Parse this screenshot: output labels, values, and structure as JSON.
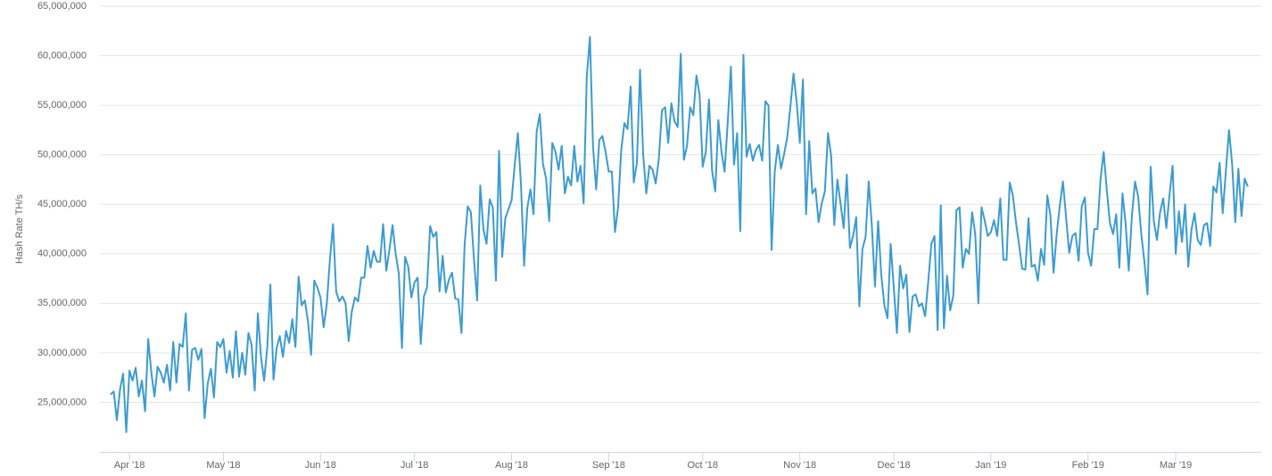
{
  "chart_data": {
    "type": "line",
    "y_label": "Hash Rate TH/s",
    "color": "#3c9bd2",
    "grid": true,
    "ylim": [
      20000000,
      65000000
    ],
    "yticks": [
      {
        "value": 25000000,
        "label": "25,000,000"
      },
      {
        "value": 30000000,
        "label": "30,000,000"
      },
      {
        "value": 35000000,
        "label": "35,000,000"
      },
      {
        "value": 40000000,
        "label": "40,000,000"
      },
      {
        "value": 45000000,
        "label": "45,000,000"
      },
      {
        "value": 50000000,
        "label": "50,000,000"
      },
      {
        "value": 55000000,
        "label": "55,000,000"
      },
      {
        "value": 60000000,
        "label": "60,000,000"
      },
      {
        "value": 65000000,
        "label": "65,000,000"
      }
    ],
    "categories": [
      null,
      null,
      null,
      null,
      null,
      null,
      "Apr '18",
      null,
      null,
      null,
      null,
      null,
      null,
      null,
      null,
      null,
      null,
      null,
      null,
      null,
      null,
      null,
      null,
      null,
      null,
      null,
      null,
      null,
      null,
      null,
      null,
      null,
      null,
      null,
      null,
      null,
      "May '18",
      null,
      null,
      null,
      null,
      null,
      null,
      null,
      null,
      null,
      null,
      null,
      null,
      null,
      null,
      null,
      null,
      null,
      null,
      null,
      null,
      null,
      null,
      null,
      null,
      null,
      null,
      null,
      null,
      null,
      null,
      "Jun '18",
      null,
      null,
      null,
      null,
      null,
      null,
      null,
      null,
      null,
      null,
      null,
      null,
      null,
      null,
      null,
      null,
      null,
      null,
      null,
      null,
      null,
      null,
      null,
      null,
      null,
      null,
      null,
      null,
      null,
      "Jul '18",
      null,
      null,
      null,
      null,
      null,
      null,
      null,
      null,
      null,
      null,
      null,
      null,
      null,
      null,
      null,
      null,
      null,
      null,
      null,
      null,
      null,
      null,
      null,
      null,
      null,
      null,
      null,
      null,
      null,
      null,
      "Aug '18",
      null,
      null,
      null,
      null,
      null,
      null,
      null,
      null,
      null,
      null,
      null,
      null,
      null,
      null,
      null,
      null,
      null,
      null,
      null,
      null,
      null,
      null,
      null,
      null,
      null,
      null,
      null,
      null,
      null,
      null,
      "Sep '18",
      null,
      null,
      null,
      null,
      null,
      null,
      null,
      null,
      null,
      null,
      null,
      null,
      null,
      null,
      null,
      null,
      null,
      null,
      null,
      null,
      null,
      null,
      null,
      null,
      null,
      null,
      null,
      null,
      null,
      "Oct '18",
      null,
      null,
      null,
      null,
      null,
      null,
      null,
      null,
      null,
      null,
      null,
      null,
      null,
      null,
      null,
      null,
      null,
      null,
      null,
      null,
      null,
      null,
      null,
      null,
      null,
      null,
      null,
      null,
      null,
      null,
      "Nov '18",
      null,
      null,
      null,
      null,
      null,
      null,
      null,
      null,
      null,
      null,
      null,
      null,
      null,
      null,
      null,
      null,
      null,
      null,
      null,
      null,
      null,
      null,
      null,
      null,
      null,
      null,
      null,
      null,
      null,
      "Dec '18",
      null,
      null,
      null,
      null,
      null,
      null,
      null,
      null,
      null,
      null,
      null,
      null,
      null,
      null,
      null,
      null,
      null,
      null,
      null,
      null,
      null,
      null,
      null,
      null,
      null,
      null,
      null,
      null,
      null,
      null,
      "Jan '19",
      null,
      null,
      null,
      null,
      null,
      null,
      null,
      null,
      null,
      null,
      null,
      null,
      null,
      null,
      null,
      null,
      null,
      null,
      null,
      null,
      null,
      null,
      null,
      null,
      null,
      null,
      null,
      null,
      null,
      null,
      "Feb '19",
      null,
      null,
      null,
      null,
      null,
      null,
      null,
      null,
      null,
      null,
      null,
      null,
      null,
      null,
      null,
      null,
      null,
      null,
      null,
      null,
      null,
      null,
      null,
      null,
      null,
      null,
      null,
      "Mar '19",
      null,
      null,
      null,
      null,
      null,
      null,
      null,
      null,
      null,
      null,
      null,
      null,
      null,
      null,
      null,
      null,
      null,
      null,
      null,
      null,
      null,
      null,
      null
    ],
    "values": [
      25800000.0,
      26100000.0,
      23200000.0,
      26300000.0,
      27900000.0,
      22000000.0,
      28200000.0,
      27200000.0,
      28500000.0,
      25600000.0,
      27200000.0,
      24100000.0,
      31400000.0,
      28000000.0,
      25600000.0,
      28600000.0,
      28000000.0,
      27000000.0,
      28800000.0,
      26200000.0,
      31100000.0,
      27000000.0,
      30900000.0,
      30600000.0,
      34000000.0,
      26200000.0,
      30300000.0,
      30500000.0,
      29300000.0,
      30400000.0,
      23400000.0,
      26900000.0,
      28400000.0,
      25500000.0,
      31100000.0,
      30600000.0,
      31400000.0,
      28000000.0,
      30200000.0,
      27500000.0,
      32200000.0,
      27600000.0,
      30000000.0,
      27800000.0,
      32000000.0,
      30800000.0,
      26200000.0,
      34000000.0,
      29600000.0,
      27200000.0,
      30500000.0,
      36900000.0,
      27300000.0,
      30500000.0,
      31700000.0,
      29600000.0,
      32200000.0,
      31000000.0,
      33400000.0,
      30600000.0,
      37700000.0,
      34800000.0,
      35300000.0,
      33200000.0,
      29800000.0,
      37300000.0,
      36600000.0,
      35600000.0,
      32600000.0,
      34900000.0,
      39400000.0,
      43000000.0,
      36200000.0,
      35200000.0,
      35700000.0,
      35000000.0,
      31200000.0,
      34200000.0,
      35600000.0,
      35200000.0,
      37600000.0,
      37600000.0,
      40800000.0,
      38600000.0,
      40300000.0,
      39200000.0,
      39200000.0,
      43000000.0,
      38300000.0,
      40400000.0,
      42900000.0,
      40000000.0,
      38000000.0,
      30500000.0,
      39700000.0,
      38700000.0,
      35600000.0,
      37100000.0,
      37600000.0,
      30900000.0,
      35700000.0,
      36600000.0,
      42800000.0,
      41700000.0,
      42200000.0,
      36200000.0,
      39800000.0,
      36100000.0,
      37400000.0,
      38100000.0,
      35500000.0,
      35400000.0,
      32000000.0,
      40900000.0,
      44800000.0,
      44200000.0,
      39400000.0,
      35300000.0,
      46900000.0,
      42500000.0,
      41000000.0,
      45500000.0,
      44700000.0,
      37300000.0,
      50400000.0,
      39700000.0,
      43600000.0,
      44500000.0,
      45400000.0,
      49000000.0,
      52200000.0,
      47000000.0,
      38800000.0,
      44600000.0,
      46500000.0,
      44000000.0,
      52300000.0,
      54100000.0,
      49100000.0,
      47600000.0,
      43300000.0,
      51200000.0,
      50300000.0,
      48500000.0,
      50900000.0,
      46100000.0,
      47800000.0,
      46900000.0,
      50900000.0,
      47300000.0,
      48900000.0,
      45100000.0,
      57900000.0,
      61900000.0,
      50800000.0,
      46500000.0,
      51500000.0,
      51900000.0,
      50300000.0,
      48300000.0,
      48300000.0,
      42200000.0,
      44700000.0,
      50500000.0,
      53200000.0,
      52600000.0,
      56900000.0,
      47200000.0,
      49200000.0,
      58600000.0,
      50000000.0,
      46100000.0,
      48900000.0,
      48500000.0,
      47100000.0,
      49600000.0,
      54500000.0,
      54800000.0,
      51200000.0,
      55200000.0,
      53400000.0,
      52800000.0,
      60200000.0,
      49500000.0,
      50900000.0,
      54800000.0,
      54000000.0,
      58000000.0,
      56100000.0,
      48800000.0,
      50300000.0,
      55600000.0,
      48400000.0,
      46300000.0,
      53500000.0,
      50300000.0,
      48300000.0,
      53300000.0,
      58900000.0,
      49000000.0,
      52200000.0,
      42300000.0,
      60100000.0,
      49800000.0,
      51100000.0,
      49400000.0,
      50500000.0,
      51000000.0,
      49400000.0,
      55400000.0,
      55000000.0,
      40400000.0,
      48300000.0,
      51000000.0,
      48600000.0,
      50100000.0,
      51800000.0,
      54900000.0,
      58200000.0,
      55300000.0,
      51200000.0,
      57600000.0,
      44000000.0,
      51400000.0,
      46100000.0,
      46600000.0,
      43200000.0,
      45100000.0,
      46300000.0,
      52200000.0,
      49900000.0,
      42900000.0,
      47500000.0,
      45100000.0,
      42600000.0,
      48000000.0,
      40600000.0,
      41800000.0,
      43700000.0,
      34700000.0,
      40500000.0,
      41700000.0,
      47300000.0,
      42800000.0,
      36700000.0,
      43300000.0,
      37900000.0,
      34800000.0,
      33500000.0,
      41000000.0,
      36600000.0,
      32000000.0,
      38800000.0,
      36500000.0,
      37900000.0,
      32100000.0,
      35700000.0,
      35900000.0,
      34700000.0,
      35000000.0,
      33700000.0,
      37200000.0,
      41000000.0,
      41800000.0,
      32300000.0,
      44900000.0,
      32500000.0,
      37800000.0,
      34300000.0,
      35800000.0,
      44400000.0,
      44700000.0,
      38600000.0,
      40500000.0,
      40000000.0,
      44200000.0,
      42000000.0,
      35000000.0,
      44700000.0,
      43400000.0,
      41800000.0,
      42200000.0,
      43400000.0,
      41800000.0,
      45600000.0,
      39400000.0,
      39400000.0,
      47200000.0,
      45900000.0,
      43200000.0,
      40900000.0,
      38500000.0,
      38400000.0,
      43600000.0,
      38700000.0,
      38900000.0,
      37300000.0,
      40500000.0,
      38900000.0,
      45900000.0,
      43900000.0,
      38100000.0,
      42000000.0,
      44900000.0,
      47300000.0,
      43700000.0,
      40100000.0,
      41800000.0,
      42100000.0,
      39300000.0,
      44800000.0,
      45700000.0,
      40100000.0,
      38800000.0,
      42500000.0,
      42500000.0,
      47600000.0,
      50300000.0,
      46400000.0,
      43100000.0,
      42000000.0,
      44000000.0,
      38600000.0,
      46100000.0,
      43100000.0,
      38300000.0,
      43800000.0,
      47300000.0,
      45800000.0,
      42000000.0,
      39200000.0,
      35900000.0,
      48800000.0,
      43300000.0,
      41400000.0,
      44200000.0,
      45600000.0,
      42600000.0,
      45900000.0,
      48900000.0,
      40000000.0,
      44300000.0,
      41200000.0,
      45000000.0,
      38700000.0,
      42400000.0,
      44100000.0,
      41400000.0,
      40900000.0,
      42900000.0,
      43100000.0,
      40800000.0,
      46800000.0,
      46200000.0,
      49200000.0,
      44100000.0,
      48300000.0,
      52500000.0,
      49100000.0,
      43200000.0,
      48600000.0,
      43800000.0,
      47600000.0,
      46800000.0
    ]
  }
}
